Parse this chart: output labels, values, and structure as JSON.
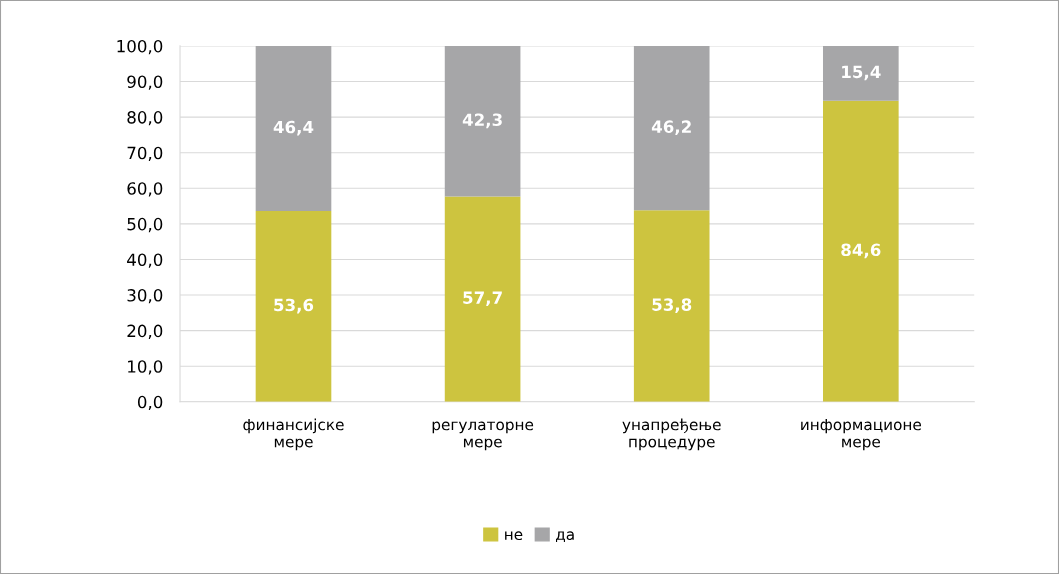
{
  "chart_data": {
    "type": "bar",
    "stacked": true,
    "categories": [
      "финансијске\nмере",
      "регулаторне\nмере",
      "унапређење\nпроцедуре",
      "информационе\nмере"
    ],
    "series": [
      {
        "name": "не",
        "color": "#cdc43f",
        "values": [
          53.6,
          57.7,
          53.8,
          84.6
        ],
        "value_labels": [
          "53,6",
          "57,7",
          "53,8",
          "84,6"
        ]
      },
      {
        "name": "да",
        "color": "#a6a6a8",
        "values": [
          46.4,
          42.3,
          46.2,
          15.4
        ],
        "value_labels": [
          "46,4",
          "42,3",
          "46,2",
          "15,4"
        ]
      }
    ],
    "ylim": [
      0,
      100
    ],
    "yticks": [
      {
        "value": 0,
        "label": "0,0"
      },
      {
        "value": 10,
        "label": "10,0"
      },
      {
        "value": 20,
        "label": "20,0"
      },
      {
        "value": 30,
        "label": "30,0"
      },
      {
        "value": 40,
        "label": "40,0"
      },
      {
        "value": 50,
        "label": "50,0"
      },
      {
        "value": 60,
        "label": "60,0"
      },
      {
        "value": 70,
        "label": "70,0"
      },
      {
        "value": 80,
        "label": "80,0"
      },
      {
        "value": 90,
        "label": "90,0"
      },
      {
        "value": 100,
        "label": "100,0"
      }
    ],
    "grid": "y",
    "legend": "bottom"
  }
}
